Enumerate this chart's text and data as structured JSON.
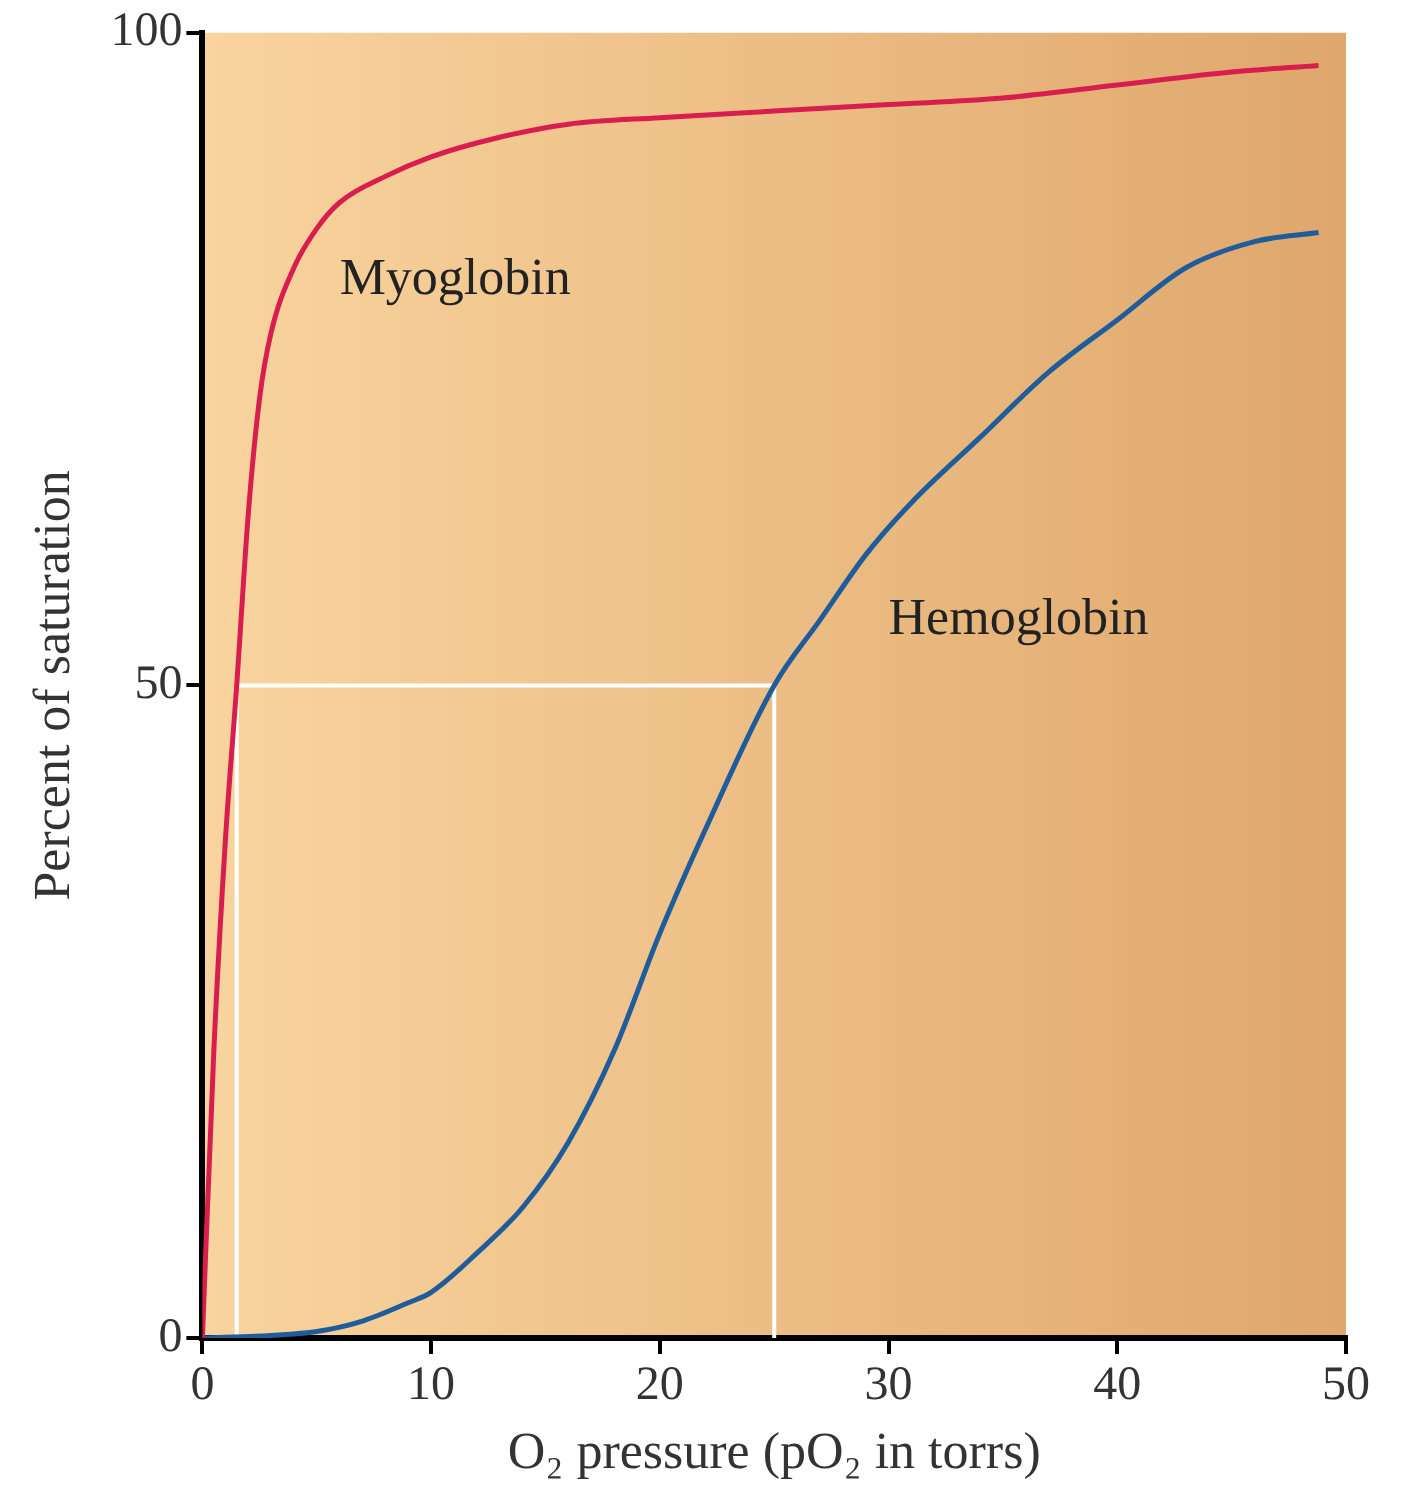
{
  "chart_data": {
    "type": "line",
    "xlabel": "O₂ pressure (pO₂ in torrs)",
    "ylabel": "Percent of saturation",
    "xlim": [
      0,
      50
    ],
    "ylim": [
      0,
      100
    ],
    "xticks": [
      0,
      10,
      20,
      30,
      40,
      50
    ],
    "yticks": [
      0,
      50,
      100
    ],
    "grid": false,
    "legend": false,
    "marker": "none",
    "line_style": "solid",
    "series": [
      {
        "name": "Myoglobin",
        "color": "#d81e4e",
        "x": [
          0,
          0.5,
          1,
          1.5,
          2,
          2.5,
          3,
          4,
          5,
          6,
          8,
          10,
          13,
          16,
          20,
          25,
          30,
          35,
          40,
          45,
          48.8
        ],
        "values": [
          0,
          22,
          38,
          50,
          63,
          72,
          77,
          82,
          85,
          87,
          89,
          90.5,
          92,
          93,
          93.5,
          94,
          94.5,
          95,
          96,
          97,
          97.5
        ]
      },
      {
        "name": "Hemoglobin",
        "color": "#1e5c9c",
        "x": [
          0,
          3,
          5,
          7,
          9,
          10,
          12,
          14,
          16,
          18,
          20,
          22,
          25,
          27,
          29,
          31,
          34,
          37,
          40,
          43,
          46,
          48.8
        ],
        "values": [
          0,
          0.2,
          0.5,
          1.3,
          2.7,
          3.5,
          6.5,
          10,
          15,
          22,
          31,
          39,
          50,
          55,
          60,
          64,
          69,
          74,
          78,
          82,
          84,
          84.7
        ]
      }
    ],
    "ref_lines": [
      {
        "axis": "y",
        "value": 50,
        "color": "#ffffff"
      },
      {
        "axis": "x",
        "value": 1.5,
        "color": "#ffffff"
      },
      {
        "axis": "x",
        "value": 25,
        "color": "#ffffff"
      }
    ]
  }
}
